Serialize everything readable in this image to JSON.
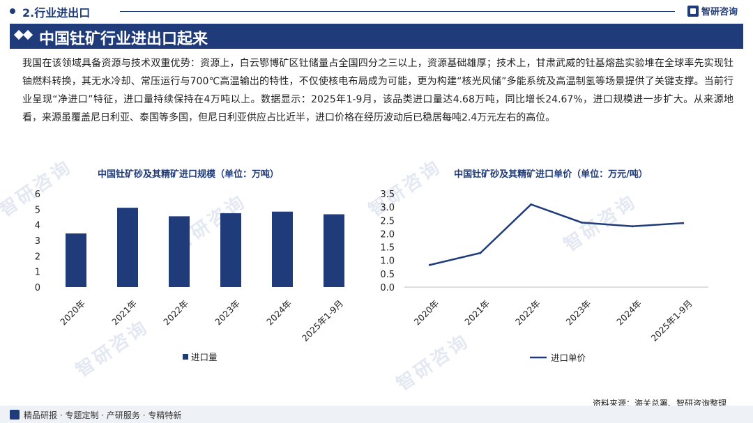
{
  "header": {
    "section": "2.行业进出口",
    "brand": "智研咨询",
    "banner_title": "中国钍矿行业进出口起来"
  },
  "body_text": "我国在该领域具备资源与技术双重优势：资源上，白云鄂博矿区钍储量占全国四分之三以上，资源基础雄厚；技术上，甘肃武威的钍基熔盐实验堆在全球率先实现钍铀燃料转换，其无水冷却、常压运行与700℃高温输出的特性，不仅使核电布局成为可能，更为构建“核光风储”多能系统及高温制氢等场景提供了关键支撑。当前行业呈现“净进口”特征，进口量持续保持在4万吨以上。数据显示：2025年1-9月，该品类进口量达4.68万吨，同比增长24.67%，进口规模进一步扩大。从来源地看，来源虽覆盖尼日利亚、泰国等多国，但尼日利亚供应占比近半，进口价格在经历波动后已稳居每吨2.4万元左右的高位。",
  "watermark": "智研咨询",
  "chart_data": [
    {
      "type": "bar",
      "title": "中国钍矿砂及其精矿进口规模（单位：万吨）",
      "categories": [
        "2020年",
        "2021年",
        "2022年",
        "2023年",
        "2024年",
        "2025年1-9月"
      ],
      "series": [
        {
          "name": "进口量",
          "values": [
            3.45,
            5.1,
            4.55,
            4.75,
            4.85,
            4.68
          ]
        }
      ],
      "ylim": [
        0,
        6
      ],
      "yticks": [
        "0",
        "1",
        "2",
        "3",
        "4",
        "5",
        "6"
      ],
      "color": "#1f3b7a",
      "legend": "bottom"
    },
    {
      "type": "line",
      "title": "中国钍矿砂及其精矿进口单价（单位：万元/吨）",
      "categories": [
        "2020年",
        "2021年",
        "2022年",
        "2023年",
        "2024年",
        "2025年1-9月"
      ],
      "series": [
        {
          "name": "进口单价",
          "values": [
            0.83,
            1.28,
            3.1,
            2.42,
            2.28,
            2.4
          ]
        }
      ],
      "ylim": [
        0,
        3.5
      ],
      "yticks": [
        "0.0",
        "0.5",
        "1.0",
        "1.5",
        "2.0",
        "2.5",
        "3.0",
        "3.5"
      ],
      "color": "#1f3b7a",
      "legend": "bottom"
    }
  ],
  "footer": {
    "tags": "精品研报 · 专题定制 · 产研服务 · 专精特新",
    "source": "资料来源：海关总署、智研咨询整理"
  }
}
